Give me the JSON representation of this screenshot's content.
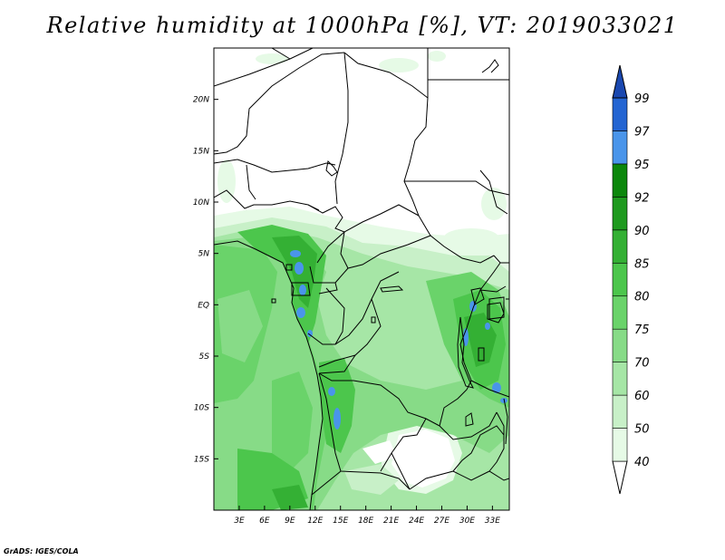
{
  "title": "Relative humidity at 1000hPa [%], VT: 2019033021",
  "credit": "GrADS: IGES/COLA",
  "map": {
    "projection": "lat-lon",
    "lon_range": [
      0,
      35
    ],
    "lat_range": [
      -20,
      25
    ],
    "lon_ticks": [
      {
        "value": 3,
        "label": "3E"
      },
      {
        "value": 6,
        "label": "6E"
      },
      {
        "value": 9,
        "label": "9E"
      },
      {
        "value": 12,
        "label": "12E"
      },
      {
        "value": 15,
        "label": "15E"
      },
      {
        "value": 18,
        "label": "18E"
      },
      {
        "value": 21,
        "label": "21E"
      },
      {
        "value": 24,
        "label": "24E"
      },
      {
        "value": 27,
        "label": "27E"
      },
      {
        "value": 30,
        "label": "30E"
      },
      {
        "value": 33,
        "label": "33E"
      }
    ],
    "lat_ticks": [
      {
        "value": 20,
        "label": "20N"
      },
      {
        "value": 15,
        "label": "15N"
      },
      {
        "value": 10,
        "label": "10N"
      },
      {
        "value": 5,
        "label": "5N"
      },
      {
        "value": 0,
        "label": "EQ"
      },
      {
        "value": -5,
        "label": "5S"
      },
      {
        "value": -10,
        "label": "10S"
      },
      {
        "value": -15,
        "label": "15S"
      }
    ]
  },
  "colorbar": {
    "levels": [
      "40",
      "50",
      "60",
      "70",
      "75",
      "80",
      "85",
      "90",
      "92",
      "95",
      "97",
      "99"
    ],
    "colors": [
      "#ffffff",
      "#e6fae6",
      "#c8f0c8",
      "#a6e6a6",
      "#87db87",
      "#6ad36a",
      "#4cc64c",
      "#34b034",
      "#1f9a1f",
      "#0c870c",
      "#4a95ea",
      "#2465d2",
      "#1a48b0"
    ]
  }
}
